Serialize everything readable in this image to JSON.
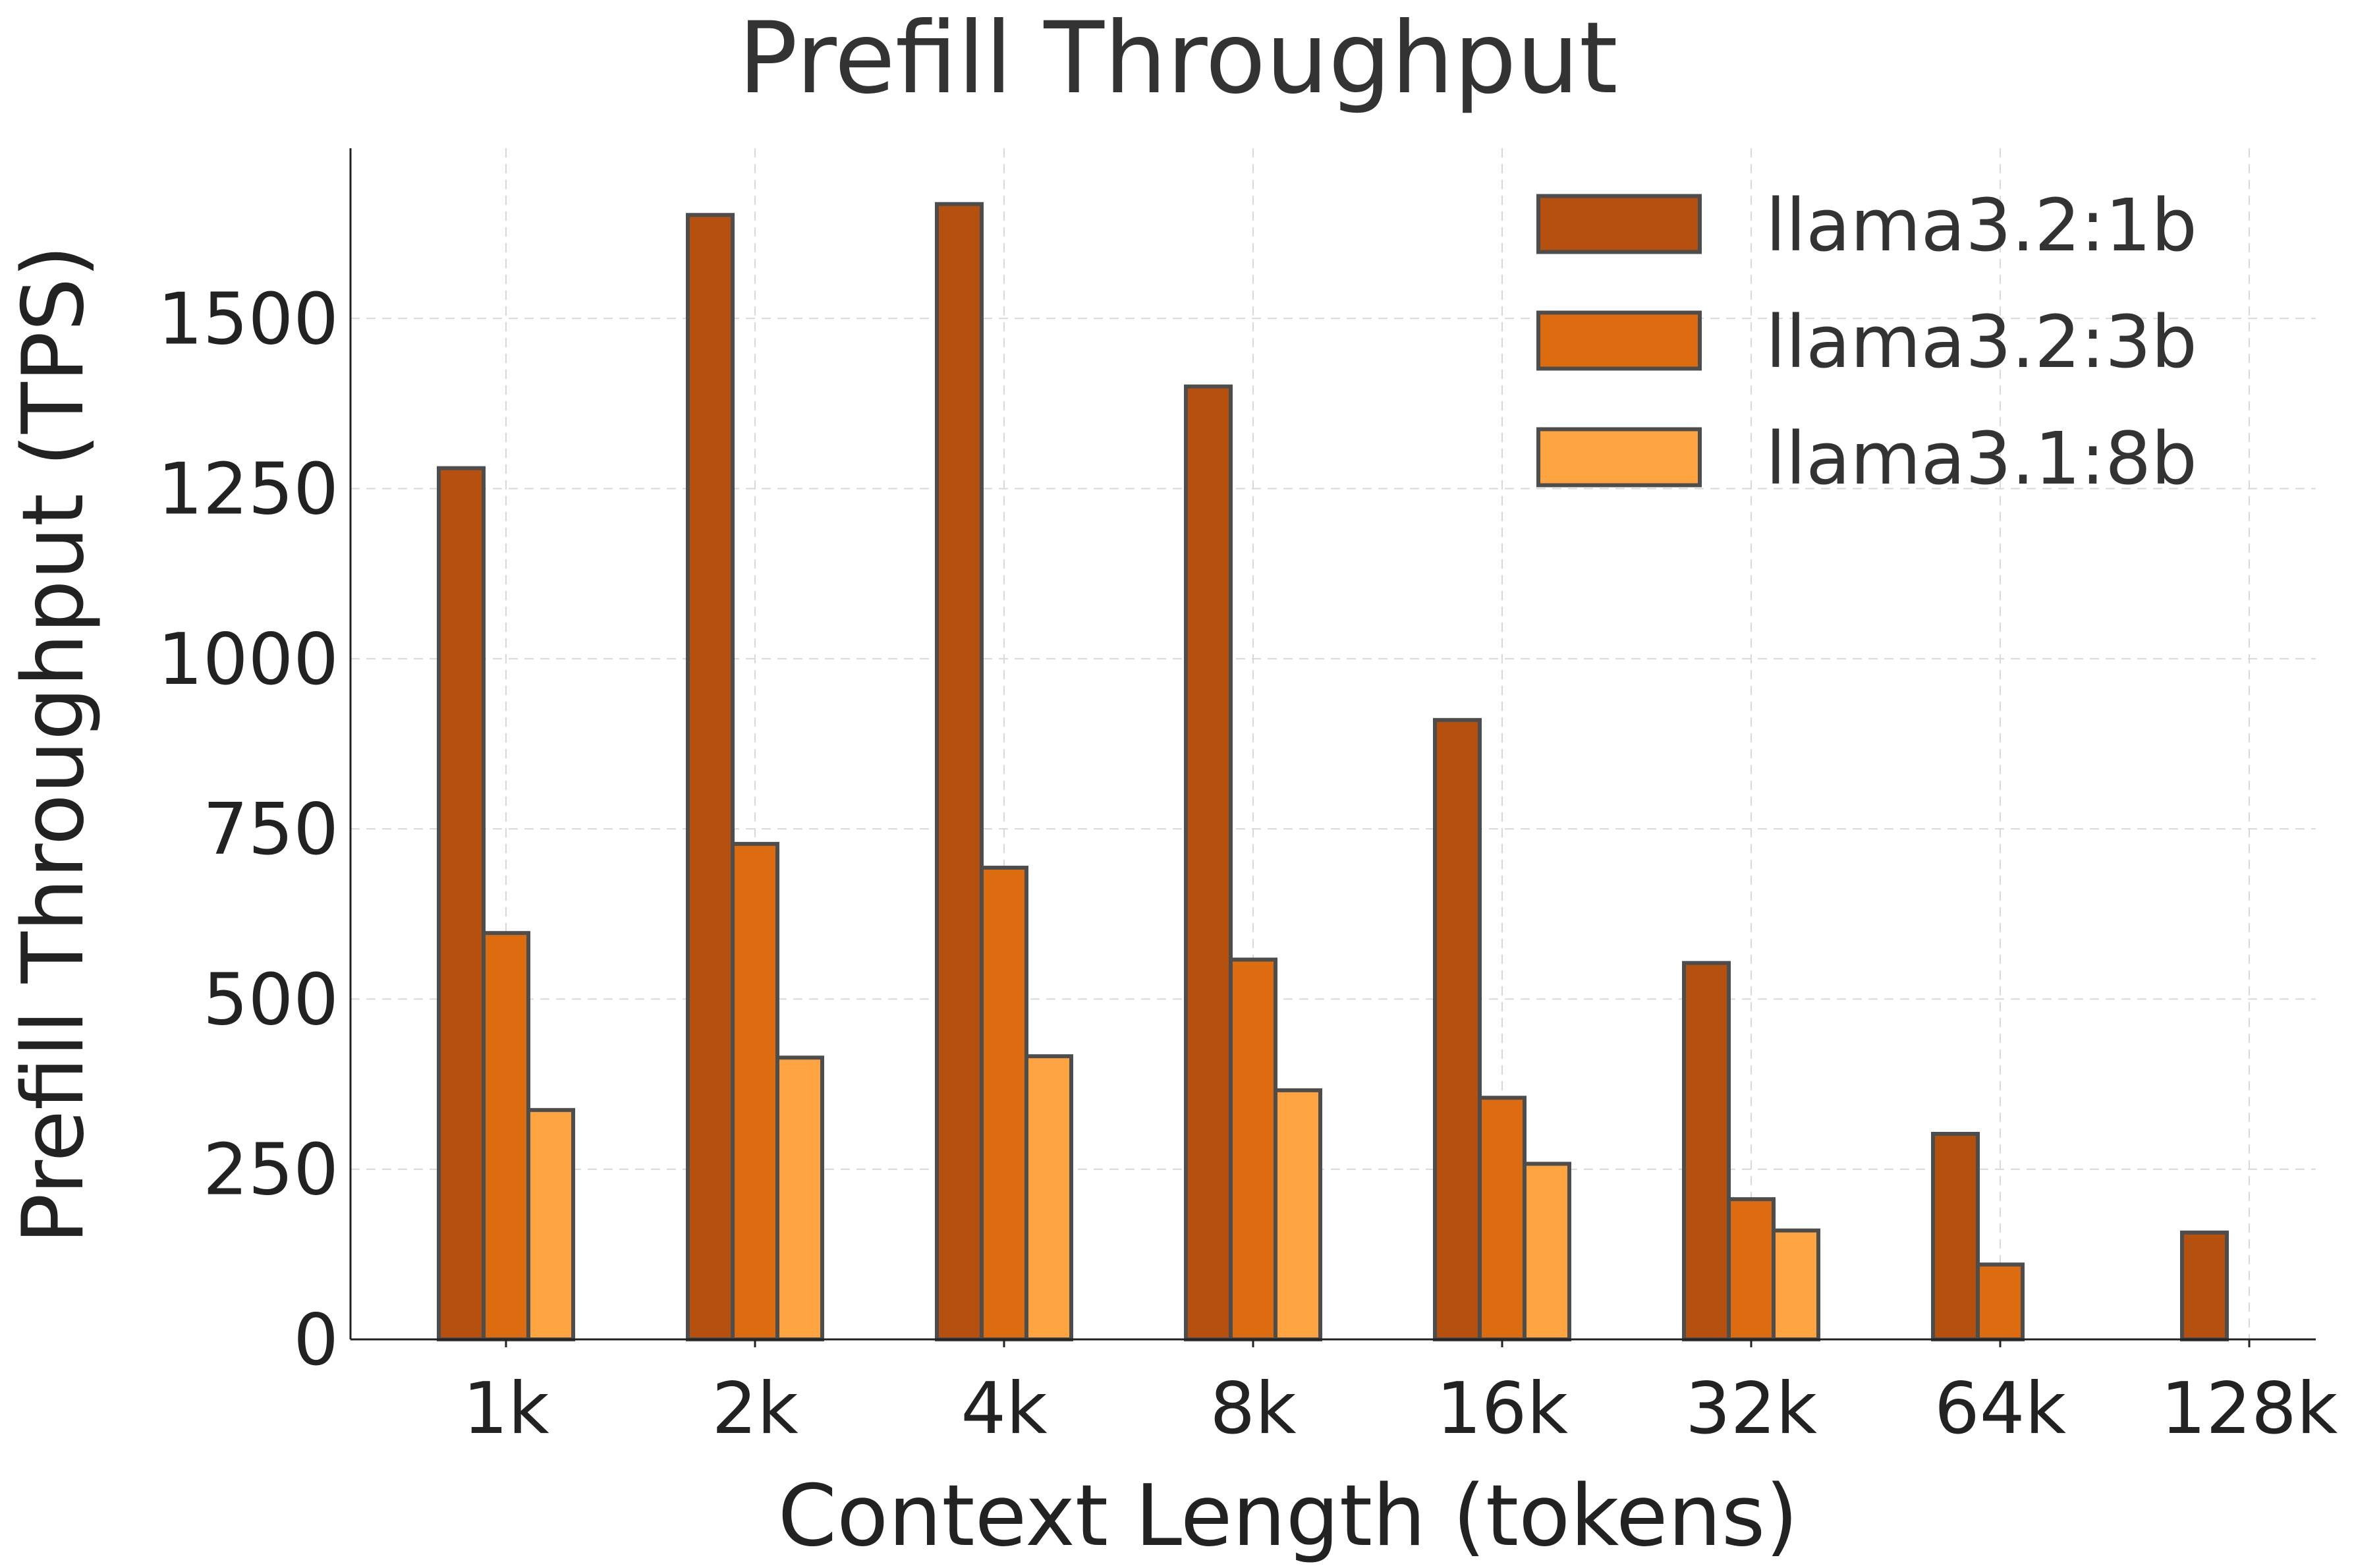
{
  "chart_data": {
    "type": "bar",
    "title": "Prefill Throughput",
    "xlabel": "Context Length (tokens)",
    "ylabel": "Prefill Throughput (TPS)",
    "categories": [
      "1k",
      "2k",
      "4k",
      "8k",
      "16k",
      "32k",
      "64k",
      "128k"
    ],
    "series": [
      {
        "name": "llama3.2:1b",
        "color": "#b5500f",
        "values": [
          1280,
          1652,
          1668,
          1400,
          910,
          553,
          302,
          157
        ]
      },
      {
        "name": "llama3.2:3b",
        "color": "#dd6c10",
        "values": [
          597,
          728,
          693,
          558,
          355,
          206,
          110,
          null
        ]
      },
      {
        "name": "llama3.1:8b",
        "color": "#fea440",
        "values": [
          337,
          414,
          416,
          366,
          258,
          160,
          null,
          null
        ]
      }
    ],
    "yticks": [
      0,
      250,
      500,
      750,
      1000,
      1250,
      1500
    ],
    "ylim": [
      0,
      1750
    ],
    "grid": true,
    "legend_position": "top-right"
  }
}
